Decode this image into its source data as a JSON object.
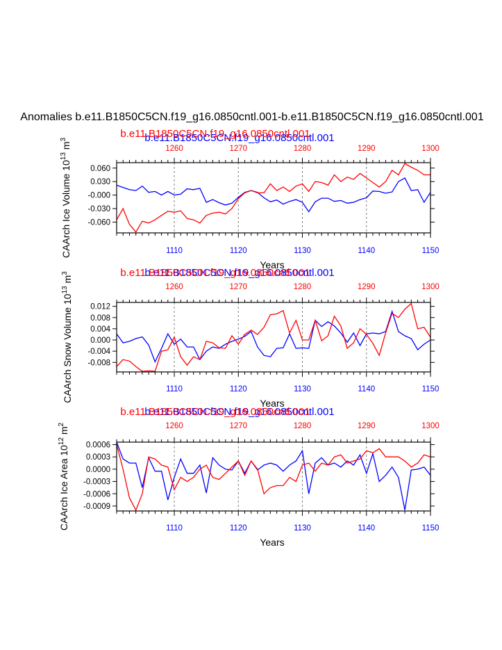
{
  "page_title": "Anomalies b.e11.B1850C5CN.f19_g16.0850cntl.001-b.e11.B1850C5CN.f19_g16.0850cntl.001",
  "colors": {
    "series_a": "#0000ff",
    "series_b": "#ff0000",
    "axis": "#000000",
    "grid": "#808080"
  },
  "chart_data": [
    {
      "type": "line",
      "title_blue": "b.e11.B1850C5CN.f19_g16.0850cntl.001",
      "title_red": "b.e11.B1850C5CN.f19_g16.0850cntl.001",
      "ylabel": "CAArch Ice Volume 10^13 m^3",
      "xlabel": "Years",
      "xlim": [
        1101,
        1150
      ],
      "xlim_top": [
        1251,
        1300
      ],
      "ylim": [
        -0.084,
        0.072
      ],
      "xticks": [
        1110,
        1120,
        1130,
        1140,
        1150
      ],
      "xticks_top": [
        1260,
        1270,
        1280,
        1290,
        1300
      ],
      "yticks": [
        0.06,
        0.03,
        0.0,
        -0.03,
        -0.06
      ],
      "ytick_labels": [
        "0.060",
        "0.030",
        "-0.000",
        "-0.030",
        "-0.060"
      ],
      "series": [
        {
          "name": "b.e11.B1850C5CN.f19_g16.0850cntl.001 (years 1101-1150)",
          "color": "#0000ff",
          "x": [
            1101,
            1102,
            1103,
            1104,
            1105,
            1106,
            1107,
            1108,
            1109,
            1110,
            1111,
            1112,
            1113,
            1114,
            1115,
            1116,
            1117,
            1118,
            1119,
            1120,
            1121,
            1122,
            1123,
            1124,
            1125,
            1126,
            1127,
            1128,
            1129,
            1130,
            1131,
            1132,
            1133,
            1134,
            1135,
            1136,
            1137,
            1138,
            1139,
            1140,
            1141,
            1142,
            1143,
            1144,
            1145,
            1146,
            1147,
            1148,
            1149,
            1150
          ],
          "values": [
            0.022,
            0.017,
            0.012,
            0.01,
            0.02,
            0.006,
            0.008,
            0.0,
            0.008,
            0.0,
            0.002,
            0.014,
            0.012,
            0.015,
            -0.016,
            -0.01,
            -0.017,
            -0.022,
            -0.018,
            -0.005,
            0.006,
            0.01,
            0.006,
            -0.006,
            -0.015,
            -0.011,
            -0.02,
            -0.014,
            -0.01,
            -0.016,
            -0.037,
            -0.015,
            -0.007,
            -0.007,
            -0.014,
            -0.012,
            -0.018,
            -0.016,
            -0.01,
            -0.006,
            0.009,
            0.008,
            0.004,
            0.007,
            0.03,
            0.038,
            0.01,
            0.012,
            -0.016,
            0.006
          ]
        },
        {
          "name": "b.e11.B1850C5CN.f19_g16.0850cntl.001 (years 1251-1300)",
          "color": "#ff0000",
          "x": [
            1101,
            1102,
            1103,
            1104,
            1105,
            1106,
            1107,
            1108,
            1109,
            1110,
            1111,
            1112,
            1113,
            1114,
            1115,
            1116,
            1117,
            1118,
            1119,
            1120,
            1121,
            1122,
            1123,
            1124,
            1125,
            1126,
            1127,
            1128,
            1129,
            1130,
            1131,
            1132,
            1133,
            1134,
            1135,
            1136,
            1137,
            1138,
            1139,
            1140,
            1141,
            1142,
            1143,
            1144,
            1145,
            1146,
            1147,
            1148,
            1149,
            1150
          ],
          "values": [
            -0.055,
            -0.03,
            -0.065,
            -0.082,
            -0.058,
            -0.062,
            -0.055,
            -0.045,
            -0.036,
            -0.038,
            -0.035,
            -0.052,
            -0.055,
            -0.062,
            -0.045,
            -0.04,
            -0.038,
            -0.042,
            -0.03,
            -0.008,
            0.005,
            0.01,
            0.005,
            0.005,
            0.025,
            0.01,
            0.018,
            0.008,
            0.02,
            0.025,
            0.008,
            0.03,
            0.028,
            0.022,
            0.045,
            0.03,
            0.04,
            0.035,
            0.048,
            0.038,
            0.028,
            0.018,
            0.03,
            0.055,
            0.045,
            0.07,
            0.062,
            0.055,
            0.045,
            0.045
          ]
        }
      ]
    },
    {
      "type": "line",
      "title_blue": "b.e11.B1850C5CN.f19_g16.0850cntl.001",
      "title_red": "b.e11.B1850C5CN.f19_g16.0850cntl.001",
      "ylabel": "CAArch Snow Volume 10^13 m^3",
      "xlabel": "Years",
      "xlim": [
        1101,
        1150
      ],
      "xlim_top": [
        1251,
        1300
      ],
      "ylim": [
        -0.0114,
        0.0134
      ],
      "xticks": [
        1110,
        1120,
        1130,
        1140,
        1150
      ],
      "xticks_top": [
        1260,
        1270,
        1280,
        1290,
        1300
      ],
      "yticks": [
        0.012,
        0.008,
        0.004,
        0.0,
        -0.004,
        -0.008
      ],
      "ytick_labels": [
        "0.012",
        "0.008",
        "0.004",
        "0.000",
        "-0.004",
        "-0.008"
      ],
      "series": [
        {
          "name": "b.e11.B1850C5CN.f19_g16.0850cntl.001 (years 1101-1150)",
          "color": "#0000ff",
          "x": [
            1101,
            1102,
            1103,
            1104,
            1105,
            1106,
            1107,
            1108,
            1109,
            1110,
            1111,
            1112,
            1113,
            1114,
            1115,
            1116,
            1117,
            1118,
            1119,
            1120,
            1121,
            1122,
            1123,
            1124,
            1125,
            1126,
            1127,
            1128,
            1129,
            1130,
            1131,
            1132,
            1133,
            1134,
            1135,
            1136,
            1137,
            1138,
            1139,
            1140,
            1141,
            1142,
            1143,
            1144,
            1145,
            1146,
            1147,
            1148,
            1149,
            1150
          ],
          "values": [
            0.0022,
            -0.001,
            -0.0005,
            0.0005,
            0.0011,
            -0.0018,
            -0.0078,
            -0.003,
            0.0022,
            -0.0015,
            0.0003,
            -0.0025,
            -0.0025,
            -0.007,
            -0.004,
            -0.0025,
            -0.003,
            -0.0015,
            -0.0005,
            0.0003,
            0.0013,
            0.003,
            -0.0025,
            -0.0055,
            -0.006,
            -0.003,
            -0.0028,
            0.0022,
            -0.003,
            -0.0028,
            -0.003,
            0.007,
            0.0048,
            0.0065,
            0.005,
            0.0025,
            -0.0008,
            0.0025,
            -0.002,
            0.0022,
            0.0025,
            0.0022,
            0.003,
            0.0102,
            0.003,
            0.0015,
            0.0005,
            -0.0035,
            -0.0015,
            0.0
          ]
        },
        {
          "name": "b.e11.B1850C5CN.f19_g16.0850cntl.001 (years 1251-1300)",
          "color": "#ff0000",
          "x": [
            1101,
            1102,
            1103,
            1104,
            1105,
            1106,
            1107,
            1108,
            1109,
            1110,
            1111,
            1112,
            1113,
            1114,
            1115,
            1116,
            1117,
            1118,
            1119,
            1120,
            1121,
            1122,
            1123,
            1124,
            1125,
            1126,
            1127,
            1128,
            1129,
            1130,
            1131,
            1132,
            1133,
            1134,
            1135,
            1136,
            1137,
            1138,
            1139,
            1140,
            1141,
            1142,
            1143,
            1144,
            1145,
            1146,
            1147,
            1148,
            1149,
            1150
          ],
          "values": [
            -0.0095,
            -0.007,
            -0.0075,
            -0.0095,
            -0.0112,
            -0.011,
            -0.0112,
            -0.004,
            -0.0035,
            0.001,
            -0.006,
            -0.009,
            -0.006,
            -0.007,
            -0.0005,
            -0.001,
            -0.0028,
            -0.003,
            0.0015,
            -0.0015,
            0.002,
            0.0035,
            0.002,
            0.0045,
            0.009,
            0.0093,
            0.0105,
            0.0025,
            0.007,
            0.0,
            0.0,
            0.007,
            -0.0003,
            0.0015,
            0.0085,
            0.005,
            -0.003,
            -0.001,
            0.004,
            0.002,
            -0.0012,
            -0.0055,
            0.0025,
            0.0095,
            0.008,
            0.011,
            0.013,
            0.004,
            0.0045,
            0.001
          ]
        }
      ]
    },
    {
      "type": "line",
      "title_blue": "b.e11.B1850C5CN.f19_g16.0850cntl.001",
      "title_red": "b.e11.B1850C5CN.f19_g16.0850cntl.001",
      "ylabel": "CAArch Ice Area 10^12 m^2",
      "xlabel": "Years",
      "xlim": [
        1101,
        1150
      ],
      "xlim_top": [
        1251,
        1300
      ],
      "ylim": [
        -0.00102,
        0.00066
      ],
      "xticks": [
        1110,
        1120,
        1130,
        1140,
        1150
      ],
      "xticks_top": [
        1260,
        1270,
        1280,
        1290,
        1300
      ],
      "yticks": [
        0.0006,
        0.0003,
        0.0,
        -0.0003,
        -0.0006,
        -0.0009
      ],
      "ytick_labels": [
        "0.0006",
        "0.0003",
        "0.0000",
        "-0.0003",
        "-0.0006",
        "-0.0009"
      ],
      "series": [
        {
          "name": "b.e11.B1850C5CN.f19_g16.0850cntl.001 (years 1101-1150)",
          "color": "#0000ff",
          "x": [
            1101,
            1102,
            1103,
            1104,
            1105,
            1106,
            1107,
            1108,
            1109,
            1110,
            1111,
            1112,
            1113,
            1114,
            1115,
            1116,
            1117,
            1118,
            1119,
            1120,
            1121,
            1122,
            1123,
            1124,
            1125,
            1126,
            1127,
            1128,
            1129,
            1130,
            1131,
            1132,
            1133,
            1134,
            1135,
            1136,
            1137,
            1138,
            1139,
            1140,
            1141,
            1142,
            1143,
            1144,
            1145,
            1146,
            1147,
            1148,
            1149,
            1150
          ],
          "values": [
            0.00066,
            0.00025,
            0.00015,
            0.00015,
            -0.00045,
            0.00028,
            -5e-05,
            -5e-05,
            -0.00075,
            -0.0002,
            0.00025,
            -0.0001,
            -0.0001,
            0.0001,
            -0.00058,
            0.00028,
            0.0001,
            0.0,
            -2e-05,
            0.0002,
            -0.0001,
            0.0002,
            -2e-05,
            0.0001,
            0.00015,
            0.0001,
            -5e-05,
            0.0001,
            0.0002,
            0.00045,
            -0.0006,
            0.00015,
            0.00028,
            0.0001,
            0.00015,
            5e-05,
            0.0002,
            0.0001,
            0.00035,
            -0.0001,
            0.00038,
            -0.0003,
            -0.00015,
            5e-05,
            -0.0002,
            -0.001,
            -2e-05,
            0.0,
            5e-05,
            -0.00015
          ]
        },
        {
          "name": "b.e11.B1850C5CN.f19_g16.0850cntl.001 (years 1251-1300)",
          "color": "#ff0000",
          "x": [
            1101,
            1102,
            1103,
            1104,
            1105,
            1106,
            1107,
            1108,
            1109,
            1110,
            1111,
            1112,
            1113,
            1114,
            1115,
            1116,
            1117,
            1118,
            1119,
            1120,
            1121,
            1122,
            1123,
            1124,
            1125,
            1126,
            1127,
            1128,
            1129,
            1130,
            1131,
            1132,
            1133,
            1134,
            1135,
            1136,
            1137,
            1138,
            1139,
            1140,
            1141,
            1142,
            1143,
            1144,
            1145,
            1146,
            1147,
            1148,
            1149,
            1150
          ],
          "values": [
            0.0006,
            0.0,
            -0.0007,
            -0.001,
            -0.0006,
            0.0003,
            0.00025,
            0.0001,
            5e-05,
            -0.0005,
            -0.0002,
            -0.0003,
            -0.0002,
            0.0,
            0.0001,
            -0.0002,
            -0.00025,
            -0.0001,
            5e-05,
            0.0002,
            -0.00015,
            0.0002,
            0.0,
            -0.0006,
            -0.00045,
            -0.0004,
            -0.0004,
            -0.0002,
            -0.0003,
            0.0001,
            0.00015,
            -5e-05,
            0.00015,
            0.0001,
            0.0003,
            0.00035,
            0.00015,
            0.0002,
            0.00025,
            0.00045,
            0.0004,
            0.0005,
            0.0003,
            0.0003,
            0.0003,
            0.0002,
            5e-05,
            0.00015,
            0.00035,
            0.0003
          ]
        }
      ]
    }
  ]
}
